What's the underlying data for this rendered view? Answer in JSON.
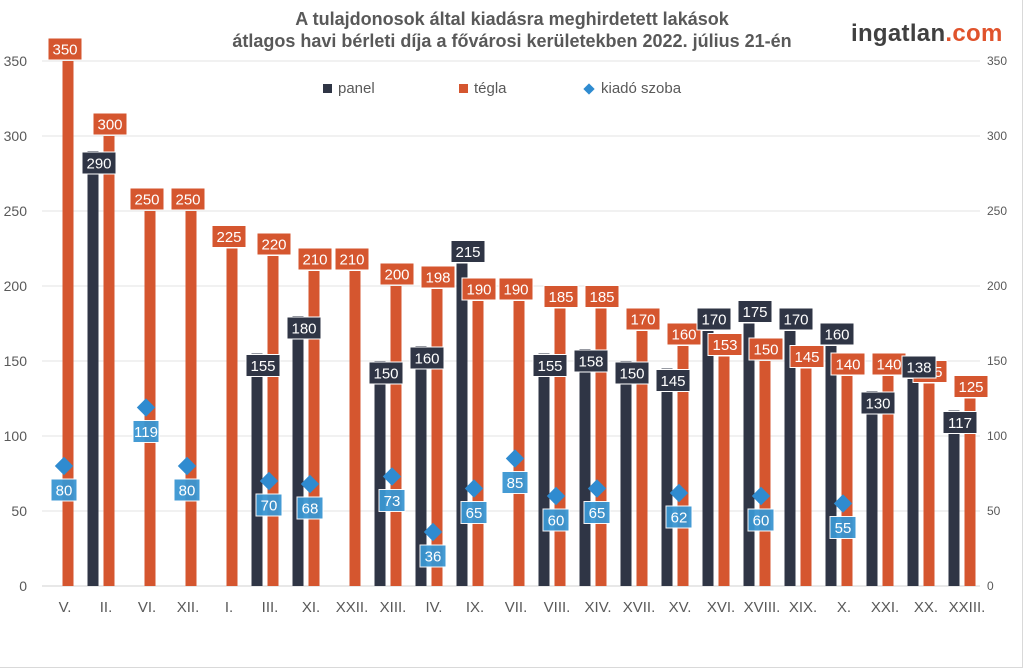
{
  "header": {
    "title_line1": "A tulajdonosok által kiadásra meghirdetett lakások",
    "title_line2": "átlagos havi bérleti díja a fővárosi kerületekben 2022. július 21-én",
    "brand_name": "ingatlan",
    "brand_suffix": ".com"
  },
  "colors": {
    "panel": "#2f3545",
    "tegla": "#d5562f",
    "szoba": "#2f8bd0",
    "szoba_label_bg": "#3a96d2",
    "grid": "#e3e3e3",
    "axis_text": "#595959"
  },
  "chart_data": {
    "type": "bar",
    "title": "A tulajdonosok által kiadásra meghirdetett lakások átlagos havi bérleti díja a fővárosi kerületekben 2022. július 21-én",
    "xlabel": "",
    "ylabel": "",
    "ylim": [
      0,
      350
    ],
    "yticks": [
      0,
      50,
      100,
      150,
      200,
      250,
      300,
      350
    ],
    "y_axis_sides": [
      "left",
      "right"
    ],
    "grid": true,
    "legend_position": "top-center",
    "categories": [
      "V.",
      "II.",
      "VI.",
      "XII.",
      "I.",
      "III.",
      "XI.",
      "XXII.",
      "XIII.",
      "IV.",
      "IX.",
      "VII.",
      "VIII.",
      "XIV.",
      "XVII.",
      "XV.",
      "XVI.",
      "XVIII.",
      "XIX.",
      "X.",
      "XXI.",
      "XX.",
      "XXIII."
    ],
    "series": [
      {
        "name": "panel",
        "kind": "bar",
        "values": [
          null,
          290,
          null,
          null,
          null,
          155,
          180,
          null,
          150,
          160,
          215,
          null,
          155,
          158,
          150,
          145,
          170,
          175,
          170,
          160,
          130,
          138,
          117
        ]
      },
      {
        "name": "tégla",
        "kind": "bar",
        "values": [
          350,
          300,
          250,
          250,
          225,
          220,
          210,
          210,
          200,
          198,
          190,
          190,
          185,
          185,
          170,
          160,
          153,
          150,
          145,
          140,
          140,
          135,
          125
        ]
      },
      {
        "name": "kiadó szoba",
        "kind": "marker-diamond",
        "values": [
          80,
          null,
          119,
          80,
          null,
          70,
          68,
          null,
          73,
          36,
          65,
          85,
          60,
          65,
          null,
          62,
          null,
          60,
          null,
          55,
          null,
          null,
          null
        ]
      }
    ]
  }
}
